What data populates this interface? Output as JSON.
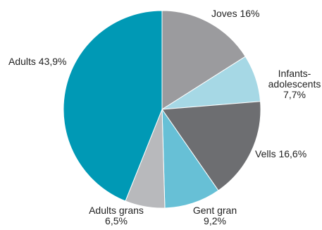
{
  "chart_data": {
    "type": "pie",
    "title": "",
    "slices": [
      {
        "label": "Joves 16%",
        "label_lines": [
          "Joves 16%"
        ],
        "value": 16.0,
        "color": "#9b9b9e"
      },
      {
        "label": "Infants-adolescents 7,7%",
        "label_lines": [
          "Infants-",
          "adolescents",
          "7,7%"
        ],
        "value": 7.7,
        "color": "#a6d8e5"
      },
      {
        "label": "Vells 16,6%",
        "label_lines": [
          "Vells 16,6%"
        ],
        "value": 16.6,
        "color": "#6d6e71"
      },
      {
        "label": "Gent gran 9,2%",
        "label_lines": [
          "Gent gran",
          "9,2%"
        ],
        "value": 9.2,
        "color": "#67c0d6"
      },
      {
        "label": "Adults grans 6,5%",
        "label_lines": [
          "Adults grans",
          "6,5%"
        ],
        "value": 6.5,
        "color": "#b8b9bc"
      },
      {
        "label": "Adults 43,9%",
        "label_lines": [
          "Adults 43,9%"
        ],
        "value": 43.9,
        "color": "#0099b5"
      }
    ],
    "start_angle": "12 o'clock",
    "direction": "clockwise",
    "legend": "none"
  }
}
